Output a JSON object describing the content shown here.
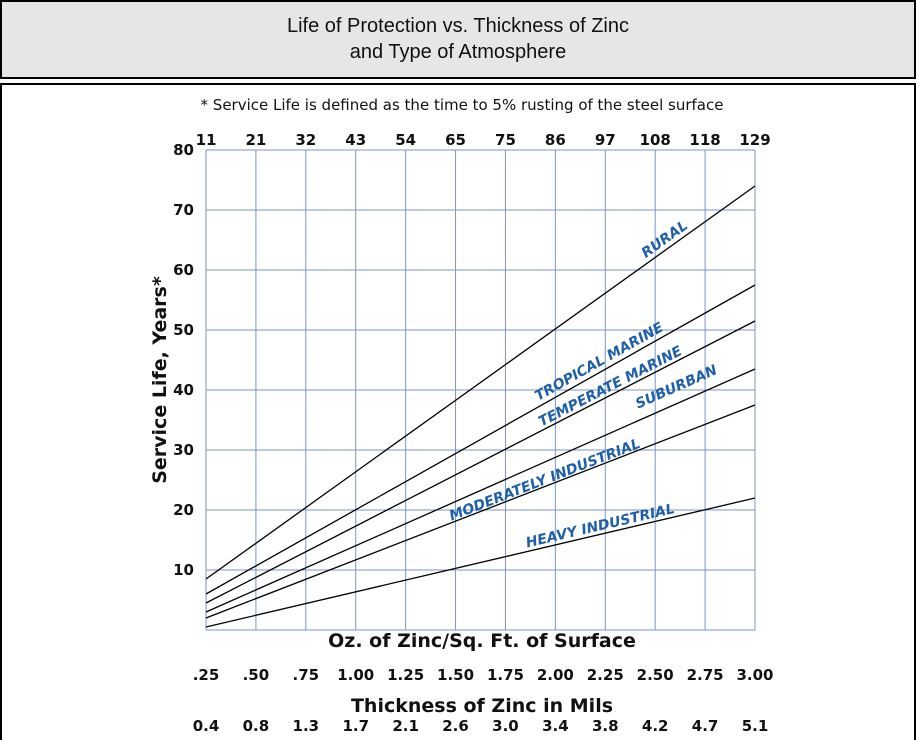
{
  "header": {
    "title_line1": "Life of Protection vs. Thickness of Zinc",
    "title_line2": "and Type of Atmosphere"
  },
  "colors": {
    "header_bg": "#e6e6e6",
    "grid": "#7b96c6",
    "series_line": "#000000",
    "series_label": "#1d5fa8"
  },
  "chart_data": {
    "type": "line",
    "note": "* Service Life is defined as the time to 5% rusting of the steel surface",
    "ylabel": "Service Life, Years*",
    "xlabel": "Oz. of Zinc/Sq. Ft. of Surface",
    "xlabel2": "Thickness of Zinc in Mils",
    "x": [
      0.25,
      3.0
    ],
    "xlim": [
      0.25,
      3.0
    ],
    "ylim": [
      0,
      80
    ],
    "y_ticks": [
      10,
      20,
      30,
      40,
      50,
      60,
      70,
      80
    ],
    "x_tick_labels_oz": [
      ".25",
      ".50",
      ".75",
      "1.00",
      "1.25",
      "1.50",
      "1.75",
      "2.00",
      "2.25",
      "2.50",
      "2.75",
      "3.00"
    ],
    "x_tick_labels_mils": [
      "0.4",
      "0.8",
      "1.3",
      "1.7",
      "2.1",
      "2.6",
      "3.0",
      "3.4",
      "3.8",
      "4.2",
      "4.7",
      "5.1"
    ],
    "x_tick_labels_top": [
      "11",
      "21",
      "32",
      "43",
      "54",
      "65",
      "75",
      "86",
      "97",
      "108",
      "118",
      "129"
    ],
    "grid": true,
    "series": [
      {
        "name": "RURAL",
        "values": [
          8.5,
          74
        ]
      },
      {
        "name": "TROPICAL MARINE",
        "values": [
          6,
          57.5
        ]
      },
      {
        "name": "TEMPERATE MARINE",
        "values": [
          4.5,
          51.5
        ]
      },
      {
        "name": "SUBURBAN",
        "values": [
          3,
          43.5
        ]
      },
      {
        "name": "MODERATELY INDUSTRIAL",
        "values": [
          2,
          37.5
        ]
      },
      {
        "name": "HEAVY INDUSTRIAL",
        "values": [
          0.5,
          22
        ]
      }
    ]
  }
}
